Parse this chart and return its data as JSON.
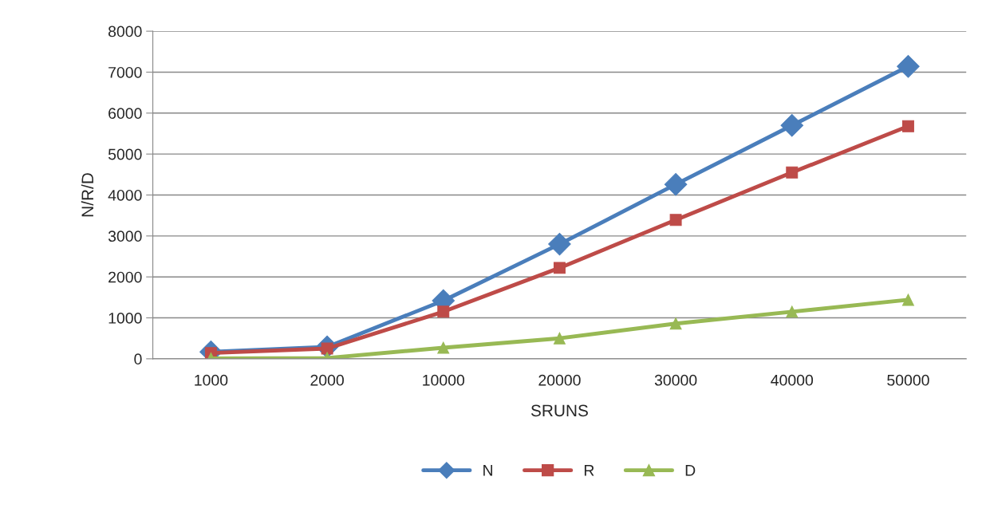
{
  "chart_data": {
    "type": "line",
    "xlabel": "SRUNS",
    "ylabel": "N/R/D",
    "categories": [
      "1000",
      "2000",
      "10000",
      "20000",
      "30000",
      "40000",
      "50000"
    ],
    "series": [
      {
        "name": "N",
        "color": "#4a7ebb",
        "marker": "diamond",
        "values": [
          170,
          290,
          1420,
          2800,
          4260,
          5700,
          7140
        ]
      },
      {
        "name": "R",
        "color": "#be4b48",
        "marker": "square",
        "values": [
          140,
          250,
          1150,
          2220,
          3390,
          4550,
          5680
        ]
      },
      {
        "name": "D",
        "color": "#98b954",
        "marker": "triangle",
        "values": [
          10,
          20,
          270,
          500,
          860,
          1150,
          1440
        ]
      }
    ],
    "ylim": [
      0,
      8000
    ],
    "yticks": [
      0,
      1000,
      2000,
      3000,
      4000,
      5000,
      6000,
      7000,
      8000
    ],
    "grid": "y",
    "legend": "bottom"
  }
}
